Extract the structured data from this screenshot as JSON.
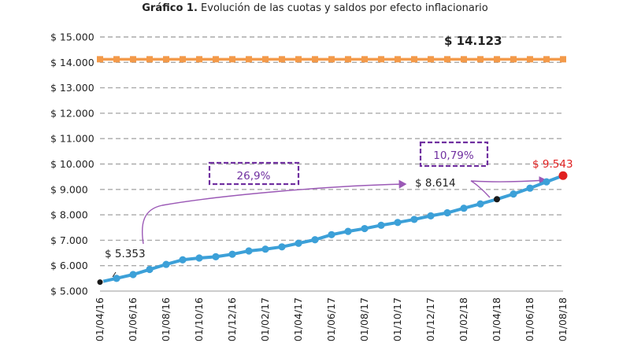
{
  "title": {
    "bold": "Gráfico 1.",
    "text": "Evolución de las cuotas y saldos por efecto inflacionario"
  },
  "chart_data": {
    "type": "line",
    "title": "Gráfico 1. Evolución de las cuotas y saldos por efecto inflacionario",
    "xlabel": "",
    "ylabel": "",
    "ylim": [
      5000,
      15000
    ],
    "yticks": [
      5000,
      6000,
      7000,
      8000,
      9000,
      10000,
      11000,
      12000,
      13000,
      14000,
      15000
    ],
    "ytick_labels": [
      "$ 5.000",
      "$ 6.000",
      "$ 7.000",
      "$ 8.000",
      "$ 9.000",
      "$ 10.000",
      "$ 11.000",
      "$ 12.000",
      "$ 13.000",
      "$ 14.000",
      "$ 15.000"
    ],
    "x": [
      "01/04/16",
      "01/05/16",
      "01/06/16",
      "01/07/16",
      "01/08/16",
      "01/09/16",
      "01/10/16",
      "01/11/16",
      "01/12/16",
      "01/01/17",
      "01/02/17",
      "01/03/17",
      "01/04/17",
      "01/05/17",
      "01/06/17",
      "01/07/17",
      "01/08/17",
      "01/09/17",
      "01/10/17",
      "01/11/17",
      "01/12/17",
      "01/01/18",
      "01/02/18",
      "01/03/18",
      "01/04/18",
      "01/05/18",
      "01/06/18",
      "01/07/18",
      "01/08/18"
    ],
    "xtick_labels": [
      "01/04/16",
      "01/06/16",
      "01/08/16",
      "01/10/16",
      "01/12/16",
      "01/02/17",
      "01/04/17",
      "01/06/17",
      "01/08/17",
      "01/10/17",
      "01/12/17",
      "01/02/18",
      "01/04/18",
      "01/06/18",
      "01/08/18"
    ],
    "grid": true,
    "series": [
      {
        "color": "#f39a4a",
        "marker": "square",
        "values": [
          14123,
          14123,
          14123,
          14123,
          14123,
          14123,
          14123,
          14123,
          14123,
          14123,
          14123,
          14123,
          14123,
          14123,
          14123,
          14123,
          14123,
          14123,
          14123,
          14123,
          14123,
          14123,
          14123,
          14123,
          14123,
          14123,
          14123,
          14123,
          14123
        ]
      },
      {
        "color": "#3ca0d8",
        "marker": "circle",
        "values": [
          5353,
          5500,
          5650,
          5850,
          6050,
          6230,
          6300,
          6350,
          6450,
          6580,
          6650,
          6740,
          6880,
          7020,
          7220,
          7350,
          7460,
          7590,
          7700,
          7820,
          7960,
          8080,
          8260,
          8430,
          8614,
          8820,
          9050,
          9300,
          9543
        ]
      }
    ],
    "annotations": {
      "flat_value": "$ 14.123",
      "start_value": "$ 5.353",
      "mid_value": "$ 8.614",
      "end_value": "$ 9.543",
      "pct_1": "26,9%",
      "pct_2": "10,79%"
    },
    "colors": {
      "flat_line": "#f39a4a",
      "growth_line": "#3ca0d8",
      "end_point": "#e02020",
      "arrow": "#9b59b6",
      "box_border": "#7030a0",
      "grid": "#aaaaaa"
    }
  }
}
